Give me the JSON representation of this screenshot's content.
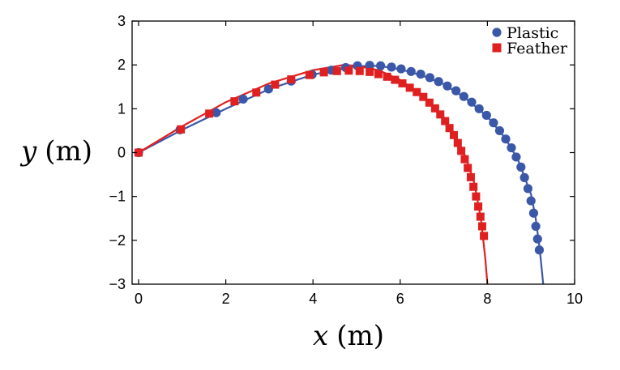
{
  "chart_data": {
    "type": "scatter",
    "xlim": [
      0,
      10
    ],
    "ylim": [
      -3,
      3
    ],
    "xticks": [
      0,
      2,
      4,
      6,
      8,
      10
    ],
    "yticks": [
      3,
      2,
      1,
      0,
      -1,
      -2,
      -3
    ],
    "xticklabels": [
      "0",
      "2",
      "4",
      "6",
      "8",
      "10"
    ],
    "yticklabels": [
      "3",
      "2",
      "1",
      "0",
      "−1",
      "−2",
      "−3"
    ],
    "xlabel": {
      "var": "x",
      "unit": "(m)"
    },
    "ylabel": {
      "var": "y",
      "unit": "(m)"
    },
    "legend_position": "top-right",
    "series": [
      {
        "name": "Plastic",
        "marker": "circle",
        "color": "#3b58a8",
        "points": [
          [
            0.0,
            0.0
          ],
          [
            0.95,
            0.52
          ],
          [
            1.78,
            0.91
          ],
          [
            2.4,
            1.22
          ],
          [
            2.98,
            1.45
          ],
          [
            3.5,
            1.63
          ],
          [
            3.98,
            1.78
          ],
          [
            4.42,
            1.88
          ],
          [
            4.75,
            1.94
          ],
          [
            5.02,
            1.98
          ],
          [
            5.3,
            1.99
          ],
          [
            5.55,
            1.98
          ],
          [
            5.8,
            1.95
          ],
          [
            6.02,
            1.91
          ],
          [
            6.25,
            1.85
          ],
          [
            6.47,
            1.79
          ],
          [
            6.68,
            1.71
          ],
          [
            6.88,
            1.62
          ],
          [
            7.08,
            1.52
          ],
          [
            7.28,
            1.41
          ],
          [
            7.46,
            1.28
          ],
          [
            7.64,
            1.15
          ],
          [
            7.81,
            1.0
          ],
          [
            7.98,
            0.85
          ],
          [
            8.14,
            0.68
          ],
          [
            8.28,
            0.5
          ],
          [
            8.42,
            0.31
          ],
          [
            8.55,
            0.11
          ],
          [
            8.66,
            -0.1
          ],
          [
            8.77,
            -0.33
          ],
          [
            8.85,
            -0.57
          ],
          [
            8.93,
            -0.82
          ],
          [
            9.0,
            -1.1
          ],
          [
            9.06,
            -1.38
          ],
          [
            9.11,
            -1.68
          ],
          [
            9.15,
            -1.97
          ],
          [
            9.19,
            -2.22
          ]
        ],
        "fit": [
          [
            0.0,
            0.0
          ],
          [
            1.0,
            0.52
          ],
          [
            2.0,
            1.0
          ],
          [
            3.0,
            1.45
          ],
          [
            4.0,
            1.78
          ],
          [
            5.0,
            1.97
          ],
          [
            5.5,
            1.98
          ],
          [
            6.0,
            1.9
          ],
          [
            6.5,
            1.76
          ],
          [
            7.0,
            1.56
          ],
          [
            7.5,
            1.24
          ],
          [
            8.0,
            0.82
          ],
          [
            8.4,
            0.34
          ],
          [
            8.7,
            -0.16
          ],
          [
            9.0,
            -0.95
          ],
          [
            9.1,
            -1.45
          ],
          [
            9.2,
            -2.2
          ],
          [
            9.28,
            -3.0
          ]
        ]
      },
      {
        "name": "Feather",
        "marker": "square",
        "color": "#e02020",
        "points": [
          [
            0.0,
            0.0
          ],
          [
            0.97,
            0.53
          ],
          [
            1.62,
            0.89
          ],
          [
            2.2,
            1.17
          ],
          [
            2.7,
            1.37
          ],
          [
            3.13,
            1.55
          ],
          [
            3.5,
            1.67
          ],
          [
            3.92,
            1.77
          ],
          [
            4.25,
            1.83
          ],
          [
            4.55,
            1.86
          ],
          [
            4.82,
            1.87
          ],
          [
            5.07,
            1.86
          ],
          [
            5.3,
            1.84
          ],
          [
            5.5,
            1.79
          ],
          [
            5.7,
            1.73
          ],
          [
            5.88,
            1.66
          ],
          [
            6.05,
            1.58
          ],
          [
            6.22,
            1.48
          ],
          [
            6.38,
            1.38
          ],
          [
            6.53,
            1.27
          ],
          [
            6.67,
            1.14
          ],
          [
            6.8,
            1.01
          ],
          [
            6.92,
            0.87
          ],
          [
            7.03,
            0.72
          ],
          [
            7.13,
            0.56
          ],
          [
            7.23,
            0.4
          ],
          [
            7.32,
            0.22
          ],
          [
            7.4,
            0.04
          ],
          [
            7.48,
            -0.15
          ],
          [
            7.55,
            -0.35
          ],
          [
            7.62,
            -0.56
          ],
          [
            7.68,
            -0.78
          ],
          [
            7.74,
            -1.0
          ],
          [
            7.79,
            -1.23
          ],
          [
            7.84,
            -1.46
          ],
          [
            7.88,
            -1.68
          ],
          [
            7.92,
            -1.9
          ]
        ],
        "fit": [
          [
            0.0,
            0.0
          ],
          [
            1.0,
            0.6
          ],
          [
            2.0,
            1.15
          ],
          [
            3.0,
            1.58
          ],
          [
            4.0,
            1.88
          ],
          [
            4.7,
            2.0
          ],
          [
            5.0,
            1.98
          ],
          [
            5.5,
            1.88
          ],
          [
            6.0,
            1.66
          ],
          [
            6.5,
            1.3
          ],
          [
            7.0,
            0.75
          ],
          [
            7.3,
            0.3
          ],
          [
            7.5,
            -0.1
          ],
          [
            7.7,
            -0.7
          ],
          [
            7.85,
            -1.5
          ],
          [
            7.95,
            -2.4
          ],
          [
            8.0,
            -3.0
          ]
        ]
      }
    ]
  }
}
